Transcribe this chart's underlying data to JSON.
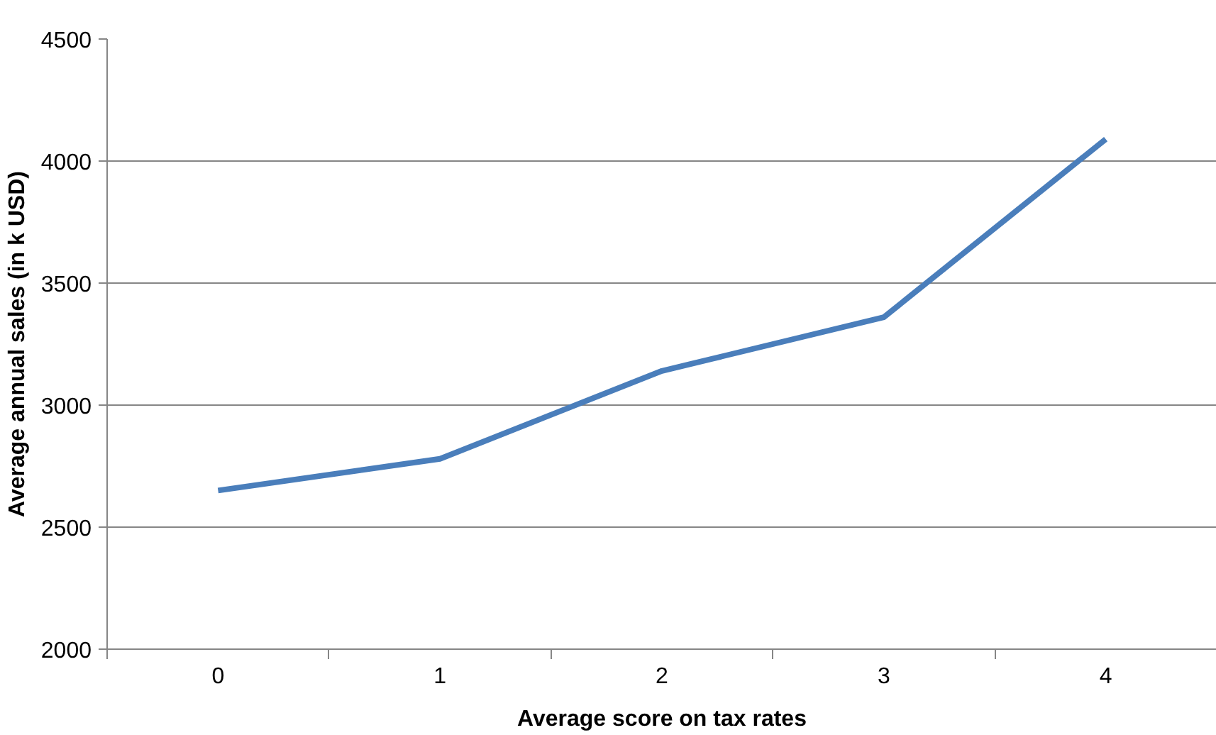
{
  "chart_data": {
    "type": "line",
    "xlabel": "Average score on tax rates",
    "ylabel": "Average annual sales (in k USD)",
    "categories": [
      "0",
      "1",
      "2",
      "3",
      "4"
    ],
    "series": [
      {
        "color": "#4a7ebb",
        "values": [
          2650,
          2780,
          3140,
          3360,
          4090
        ]
      }
    ],
    "ylim": [
      2000,
      4500
    ],
    "yticks": [
      2000,
      2500,
      3000,
      3500,
      4000,
      4500
    ],
    "grid": "y",
    "marker": "none",
    "line_style": "solid"
  }
}
